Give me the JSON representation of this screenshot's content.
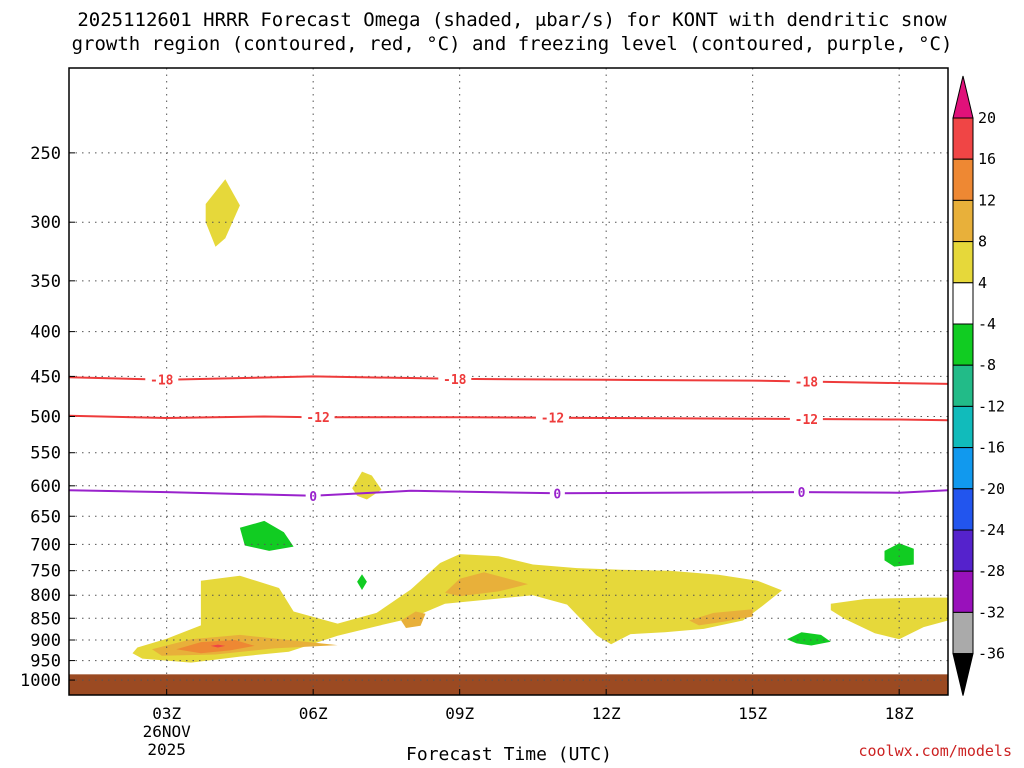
{
  "chart_data": {
    "type": "heatmap",
    "title": "2025112601 HRRR Forecast Omega (shaded, μbar/s) for KONT with dendritic snow\ngrowth region (contoured, red, °C) and freezing level (contoured, purple, °C)",
    "xlabel": "Forecast Time (UTC)",
    "ylabel": "",
    "x_ticks": [
      {
        "hour": 3,
        "label": "03Z"
      },
      {
        "hour": 6,
        "label": "06Z"
      },
      {
        "hour": 9,
        "label": "09Z"
      },
      {
        "hour": 12,
        "label": "12Z"
      },
      {
        "hour": 15,
        "label": "15Z"
      },
      {
        "hour": 18,
        "label": "18Z"
      }
    ],
    "date_label_line1": "26NOV",
    "date_label_line2": "2025",
    "xlim_hours": [
      1,
      19
    ],
    "y_axis": "pressure (hPa), log scale",
    "y_ticks": [
      250,
      300,
      350,
      400,
      450,
      500,
      550,
      600,
      650,
      700,
      750,
      800,
      850,
      900,
      950,
      1000
    ],
    "ylim_hpa": [
      200,
      1040
    ],
    "surface_hpa": 985,
    "colorbar": {
      "labels": [
        "20",
        "16",
        "12",
        "8",
        "4",
        "-4",
        "-8",
        "-12",
        "-16",
        "-20",
        "-24",
        "-28",
        "-32",
        "-36"
      ],
      "bins": [
        {
          "min": 16,
          "max": 20,
          "color": "#f04545"
        },
        {
          "min": 12,
          "max": 16,
          "color": "#ee8833"
        },
        {
          "min": 8,
          "max": 12,
          "color": "#e8b03a"
        },
        {
          "min": 4,
          "max": 8,
          "color": "#e6d83a"
        },
        {
          "min": -4,
          "max": 4,
          "color": "#ffffff"
        },
        {
          "min": -8,
          "max": -4,
          "color": "#11cc22"
        },
        {
          "min": -12,
          "max": -8,
          "color": "#22bb88"
        },
        {
          "min": -16,
          "max": -12,
          "color": "#11bbbb"
        },
        {
          "min": -20,
          "max": -16,
          "color": "#1199ee"
        },
        {
          "min": -24,
          "max": -20,
          "color": "#2255ee"
        },
        {
          "min": -28,
          "max": -24,
          "color": "#5522cc"
        },
        {
          "min": -32,
          "max": -28,
          "color": "#9911bb"
        },
        {
          "min": -36,
          "max": -32,
          "color": "#aaaaaa"
        }
      ],
      "over_color": "#e0117a",
      "under_color": "#000000"
    },
    "isotherms": [
      {
        "value": -18,
        "label": "-18",
        "color": "#ee3b3b",
        "points": [
          [
            1,
            451
          ],
          [
            3,
            454
          ],
          [
            6,
            450
          ],
          [
            9,
            453
          ],
          [
            12,
            454
          ],
          [
            15,
            455
          ],
          [
            18,
            458
          ],
          [
            19,
            459
          ]
        ],
        "label_hours": [
          2.9,
          8.9,
          16.1
        ]
      },
      {
        "value": -12,
        "label": "-12",
        "color": "#ee3b3b",
        "points": [
          [
            1,
            499
          ],
          [
            3,
            502
          ],
          [
            5,
            500
          ],
          [
            6,
            501
          ],
          [
            9,
            501
          ],
          [
            12,
            502
          ],
          [
            15,
            503
          ],
          [
            18,
            504
          ],
          [
            19,
            505
          ]
        ],
        "label_hours": [
          6.1,
          10.9,
          16.1
        ]
      },
      {
        "value": 0,
        "label": "0",
        "color": "#9922cc",
        "points": [
          [
            1,
            607
          ],
          [
            3,
            610
          ],
          [
            6,
            616
          ],
          [
            8,
            608
          ],
          [
            11,
            612
          ],
          [
            16,
            610
          ],
          [
            18,
            611
          ],
          [
            19,
            607
          ]
        ],
        "label_hours": [
          6,
          11,
          16
        ]
      }
    ],
    "omega_regions": [
      {
        "bin": "4 to 8",
        "color": "#e6d83a",
        "points": [
          [
            2.4,
            918
          ],
          [
            3.0,
            897
          ],
          [
            3.7,
            866
          ],
          [
            3.7,
            770
          ],
          [
            4.5,
            760
          ],
          [
            5.3,
            785
          ],
          [
            5.6,
            835
          ],
          [
            6.5,
            862
          ],
          [
            7.3,
            838
          ],
          [
            8.0,
            788
          ],
          [
            8.6,
            735
          ],
          [
            9.0,
            718
          ],
          [
            9.8,
            722
          ],
          [
            10.5,
            738
          ],
          [
            11.4,
            745
          ],
          [
            12.3,
            748
          ],
          [
            13.3,
            750
          ],
          [
            14.3,
            758
          ],
          [
            15.1,
            770
          ],
          [
            15.6,
            790
          ],
          [
            15.2,
            823
          ],
          [
            14.8,
            855
          ],
          [
            14.0,
            874
          ],
          [
            13.2,
            882
          ],
          [
            12.5,
            886
          ],
          [
            12.1,
            910
          ],
          [
            11.8,
            889
          ],
          [
            11.2,
            820
          ],
          [
            10.5,
            800
          ],
          [
            9.7,
            808
          ],
          [
            8.7,
            818
          ],
          [
            8.0,
            850
          ],
          [
            7.3,
            868
          ],
          [
            6.5,
            890
          ],
          [
            5.5,
            928
          ],
          [
            4.5,
            940
          ],
          [
            3.5,
            955
          ],
          [
            2.5,
            945
          ],
          [
            2.3,
            932
          ]
        ]
      },
      {
        "bin": "4 to 8",
        "color": "#e6d83a",
        "points": [
          [
            16.6,
            818
          ],
          [
            17.3,
            808
          ],
          [
            18.5,
            805
          ],
          [
            19.0,
            805
          ],
          [
            19.0,
            855
          ],
          [
            18.5,
            870
          ],
          [
            18.0,
            898
          ],
          [
            17.5,
            884
          ],
          [
            16.9,
            852
          ],
          [
            16.6,
            832
          ]
        ]
      },
      {
        "bin": "4 to 8",
        "color": "#e6d83a",
        "points": [
          [
            3.8,
            286
          ],
          [
            4.2,
            268
          ],
          [
            4.5,
            287
          ],
          [
            4.2,
            313
          ],
          [
            4.0,
            320
          ],
          [
            3.8,
            300
          ]
        ]
      },
      {
        "bin": "4 to 8",
        "color": "#e6d83a",
        "points": [
          [
            6.8,
            604
          ],
          [
            7.0,
            578
          ],
          [
            7.2,
            584
          ],
          [
            7.4,
            606
          ],
          [
            7.1,
            622
          ],
          [
            6.9,
            616
          ]
        ]
      },
      {
        "bin": "8 to 12",
        "color": "#e8b03a",
        "points": [
          [
            2.7,
            922
          ],
          [
            3.5,
            898
          ],
          [
            4.5,
            888
          ],
          [
            5.5,
            900
          ],
          [
            6.5,
            912
          ],
          [
            5.2,
            920
          ],
          [
            4.0,
            935
          ],
          [
            2.9,
            938
          ]
        ]
      },
      {
        "bin": "8 to 12",
        "color": "#e8b03a",
        "points": [
          [
            8.7,
            795
          ],
          [
            9.0,
            766
          ],
          [
            9.5,
            753
          ],
          [
            10.0,
            766
          ],
          [
            10.4,
            777
          ],
          [
            9.8,
            792
          ],
          [
            9.0,
            802
          ]
        ]
      },
      {
        "bin": "8 to 12",
        "color": "#e8b03a",
        "points": [
          [
            7.8,
            855
          ],
          [
            8.1,
            835
          ],
          [
            8.3,
            840
          ],
          [
            8.2,
            867
          ],
          [
            7.9,
            872
          ]
        ]
      },
      {
        "bin": "8 to 12",
        "color": "#e8b03a",
        "points": [
          [
            13.7,
            855
          ],
          [
            14.2,
            838
          ],
          [
            15.0,
            830
          ],
          [
            15.0,
            846
          ],
          [
            14.4,
            858
          ],
          [
            13.9,
            866
          ]
        ]
      },
      {
        "bin": "12 to 16",
        "color": "#ee8833",
        "points": [
          [
            3.2,
            922
          ],
          [
            3.7,
            905
          ],
          [
            4.4,
            900
          ],
          [
            4.8,
            914
          ],
          [
            4.3,
            925
          ],
          [
            3.7,
            932
          ]
        ]
      },
      {
        "bin": "16 to 20",
        "color": "#f04545",
        "points": [
          [
            3.9,
            914
          ],
          [
            4.05,
            911
          ],
          [
            4.2,
            914
          ],
          [
            4.05,
            918
          ]
        ]
      },
      {
        "bin": "-8 to -4",
        "color": "#11cc22",
        "points": [
          [
            4.5,
            670
          ],
          [
            5.0,
            658
          ],
          [
            5.4,
            678
          ],
          [
            5.6,
            704
          ],
          [
            5.1,
            712
          ],
          [
            4.6,
            702
          ]
        ]
      },
      {
        "bin": "-8 to -4",
        "color": "#11cc22",
        "points": [
          [
            6.9,
            772
          ],
          [
            7.0,
            757
          ],
          [
            7.1,
            772
          ],
          [
            7.0,
            789
          ]
        ]
      },
      {
        "bin": "-8 to -4",
        "color": "#11cc22",
        "points": [
          [
            15.7,
            898
          ],
          [
            16.0,
            882
          ],
          [
            16.4,
            888
          ],
          [
            16.6,
            904
          ],
          [
            16.2,
            913
          ],
          [
            15.9,
            908
          ]
        ]
      },
      {
        "bin": "-8 to -4",
        "color": "#11cc22",
        "points": [
          [
            17.7,
            712
          ],
          [
            18.0,
            698
          ],
          [
            18.3,
            708
          ],
          [
            18.3,
            738
          ],
          [
            17.9,
            742
          ],
          [
            17.7,
            730
          ]
        ]
      }
    ]
  },
  "credit": "coolwx.com/models"
}
